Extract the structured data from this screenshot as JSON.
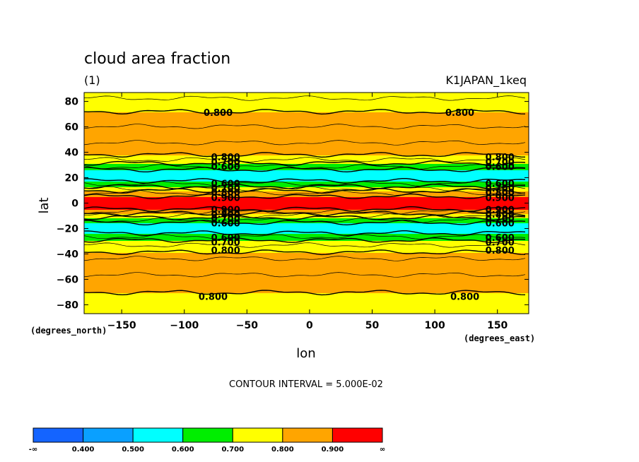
{
  "chart_data": {
    "type": "heatmap",
    "title": "cloud area fraction",
    "subtitle_left": "(1)",
    "subtitle_right": "K1JAPAN_1keq",
    "xlabel": "lon",
    "ylabel": "lat",
    "x_units": "(degrees_east)",
    "y_units": "(degrees_north)",
    "xlim": [
      -180,
      175
    ],
    "ylim": [
      -87,
      87
    ],
    "xticks": [
      -150,
      -100,
      -50,
      0,
      50,
      100,
      150
    ],
    "yticks": [
      -80,
      -60,
      -40,
      -20,
      0,
      20,
      40,
      60,
      80
    ],
    "contour_interval_text": "CONTOUR INTERVAL = 5.000E-02",
    "colorbar": {
      "bins": [
        {
          "color": "#1464ff",
          "range": [
            "-∞",
            "0.400"
          ]
        },
        {
          "color": "#0aa0ff",
          "range": [
            "0.400",
            "0.500"
          ]
        },
        {
          "color": "#00ffff",
          "range": [
            "0.500",
            "0.600"
          ]
        },
        {
          "color": "#00ee00",
          "range": [
            "0.600",
            "0.700"
          ]
        },
        {
          "color": "#ffff00",
          "range": [
            "0.700",
            "0.800"
          ]
        },
        {
          "color": "#ffa500",
          "range": [
            "0.800",
            "0.900"
          ]
        },
        {
          "color": "#ff0000",
          "range": [
            "0.900",
            "∞"
          ]
        }
      ],
      "labels": [
        "-∞",
        "0.400",
        "0.500",
        "0.600",
        "0.700",
        "0.800",
        "0.900",
        "∞"
      ]
    },
    "lat_profile": [
      {
        "lat": -87,
        "v": 0.75
      },
      {
        "lat": -72,
        "v": 0.78
      },
      {
        "lat": -68,
        "v": 0.84
      },
      {
        "lat": -45,
        "v": 0.86
      },
      {
        "lat": -40,
        "v": 0.81
      },
      {
        "lat": -36,
        "v": 0.78
      },
      {
        "lat": -31,
        "v": 0.72
      },
      {
        "lat": -28,
        "v": 0.68
      },
      {
        "lat": -24,
        "v": 0.6
      },
      {
        "lat": -20,
        "v": 0.55
      },
      {
        "lat": -18,
        "v": 0.55
      },
      {
        "lat": -14,
        "v": 0.64
      },
      {
        "lat": -11,
        "v": 0.72
      },
      {
        "lat": -7,
        "v": 0.85
      },
      {
        "lat": -4,
        "v": 0.93
      },
      {
        "lat": 0,
        "v": 0.95
      },
      {
        "lat": 4,
        "v": 0.92
      },
      {
        "lat": 8,
        "v": 0.85
      },
      {
        "lat": 12,
        "v": 0.72
      },
      {
        "lat": 16,
        "v": 0.63
      },
      {
        "lat": 20,
        "v": 0.55
      },
      {
        "lat": 24,
        "v": 0.55
      },
      {
        "lat": 27,
        "v": 0.62
      },
      {
        "lat": 31,
        "v": 0.7
      },
      {
        "lat": 36,
        "v": 0.78
      },
      {
        "lat": 40,
        "v": 0.82
      },
      {
        "lat": 50,
        "v": 0.86
      },
      {
        "lat": 70,
        "v": 0.84
      },
      {
        "lat": 73,
        "v": 0.77
      },
      {
        "lat": 87,
        "v": 0.74
      }
    ],
    "contour_labels": [
      {
        "lon": -73,
        "lat": 71.5,
        "text": "0.800"
      },
      {
        "lon": 120,
        "lat": 71.5,
        "text": "0.800"
      },
      {
        "lon": -67,
        "lat": 36.5,
        "text": "0.800"
      },
      {
        "lon": -67,
        "lat": 32.5,
        "text": "0.700"
      },
      {
        "lon": -67,
        "lat": 29,
        "text": "0.600"
      },
      {
        "lon": 152,
        "lat": 36.5,
        "text": "0.800"
      },
      {
        "lon": 152,
        "lat": 32.5,
        "text": "0.700"
      },
      {
        "lon": 152,
        "lat": 29,
        "text": "0.600"
      },
      {
        "lon": -67,
        "lat": 15.5,
        "text": "0.600"
      },
      {
        "lon": -67,
        "lat": 12,
        "text": "0.700"
      },
      {
        "lon": -67,
        "lat": 8.5,
        "text": "0.800"
      },
      {
        "lon": -67,
        "lat": 4.5,
        "text": "0.900"
      },
      {
        "lon": 152,
        "lat": 15.5,
        "text": "0.600"
      },
      {
        "lon": 152,
        "lat": 12,
        "text": "0.700"
      },
      {
        "lon": 152,
        "lat": 8.5,
        "text": "0.800"
      },
      {
        "lon": 152,
        "lat": 4.5,
        "text": "0.900"
      },
      {
        "lon": -67,
        "lat": -5,
        "text": "0.900"
      },
      {
        "lon": -67,
        "lat": -8.5,
        "text": "0.800"
      },
      {
        "lon": -67,
        "lat": -12,
        "text": "0.700"
      },
      {
        "lon": -67,
        "lat": -15.5,
        "text": "0.600"
      },
      {
        "lon": 152,
        "lat": -5,
        "text": "0.900"
      },
      {
        "lon": 152,
        "lat": -8.5,
        "text": "0.800"
      },
      {
        "lon": 152,
        "lat": -12,
        "text": "0.700"
      },
      {
        "lon": 152,
        "lat": -15.5,
        "text": "0.600"
      },
      {
        "lon": -67,
        "lat": -27,
        "text": "0.600"
      },
      {
        "lon": -67,
        "lat": -30.5,
        "text": "0.700"
      },
      {
        "lon": -67,
        "lat": -37,
        "text": "0.800"
      },
      {
        "lon": 152,
        "lat": -27,
        "text": "0.600"
      },
      {
        "lon": 152,
        "lat": -30.5,
        "text": "0.700"
      },
      {
        "lon": 152,
        "lat": -37,
        "text": "0.800"
      },
      {
        "lon": -77,
        "lat": -73.5,
        "text": "0.800"
      },
      {
        "lon": 124,
        "lat": -73.5,
        "text": "0.800"
      }
    ]
  }
}
